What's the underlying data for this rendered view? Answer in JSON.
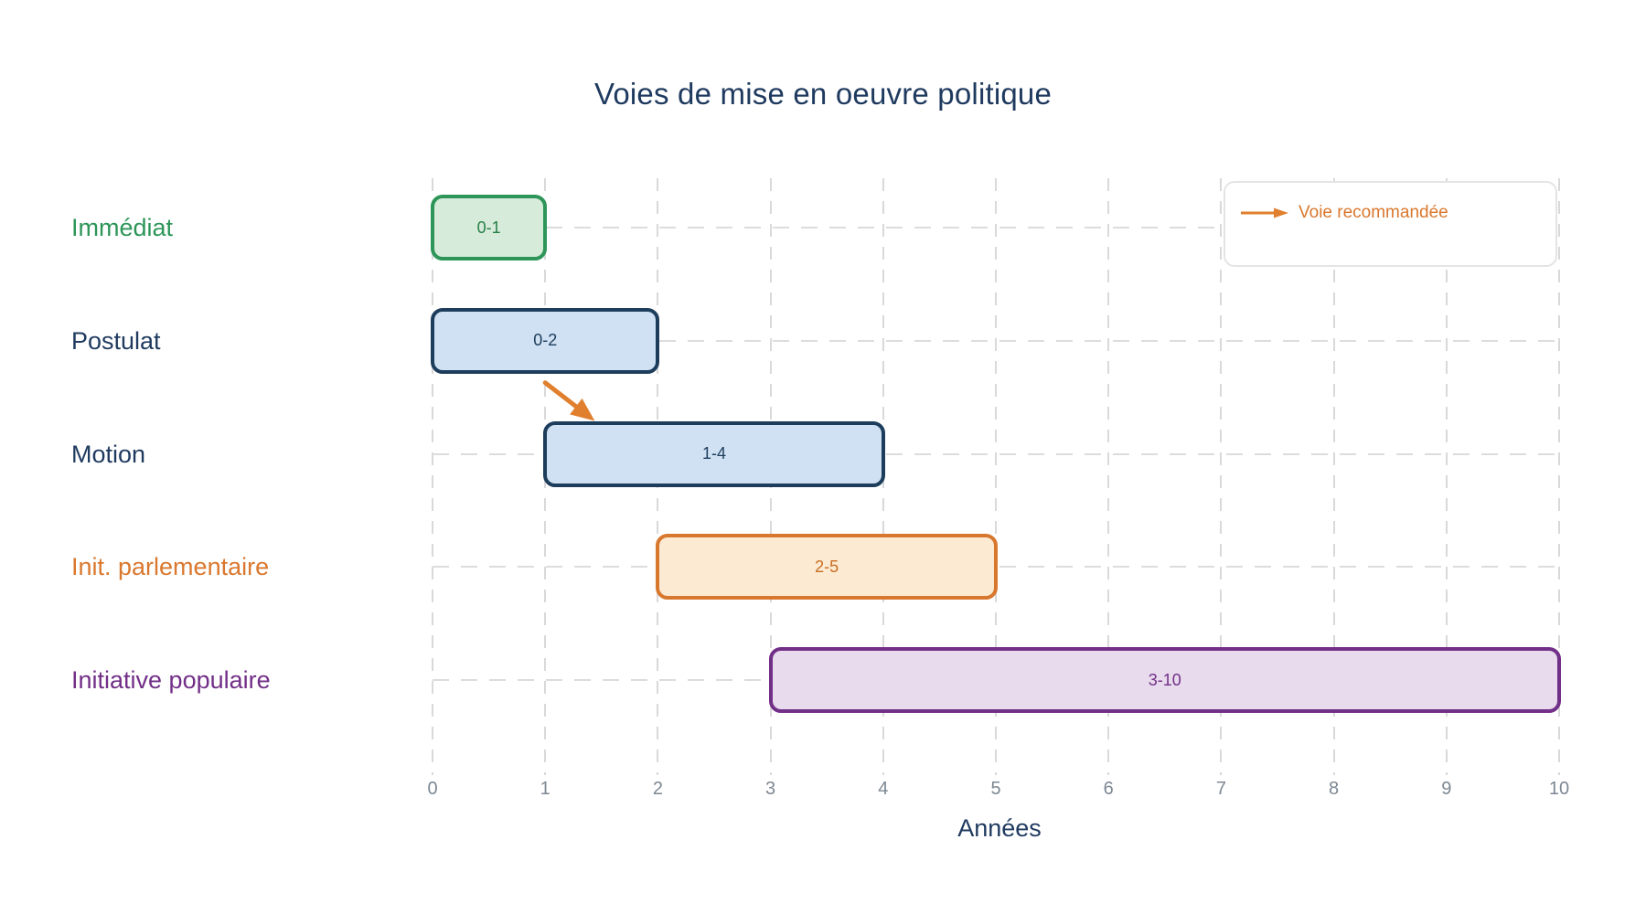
{
  "title": "Voies de mise en oeuvre politique",
  "title_color": "#1f3a5f",
  "x_axis": {
    "label": "Années",
    "label_color": "#1f3a5f",
    "tick_color": "#7d8893",
    "ticks": [
      "0",
      "1",
      "2",
      "3",
      "4",
      "5",
      "6",
      "7",
      "8",
      "9",
      "10"
    ]
  },
  "legend": {
    "arrow_label": "Voie recommandée",
    "color": "#d9772e",
    "arrow_color": "#e0802f"
  },
  "chart_data": {
    "type": "bar",
    "subtype": "gantt-range",
    "title": "Voies de mise en oeuvre politique",
    "xlabel": "Années",
    "xlim": [
      0,
      10
    ],
    "grid": "dashed",
    "rows": [
      {
        "name": "Immédiat",
        "start": 0,
        "end": 1,
        "label": "0-1",
        "fill": "#d6ebd9",
        "border": "#2d9558",
        "label_color": "#27804a",
        "name_color": "#2d9558"
      },
      {
        "name": "Postulat",
        "start": 0,
        "end": 2,
        "label": "0-2",
        "fill": "#cfe1f2",
        "border": "#1d3d5c",
        "label_color": "#1d3d5c",
        "name_color": "#1f3a5f"
      },
      {
        "name": "Motion",
        "start": 1,
        "end": 4,
        "label": "1-4",
        "fill": "#cfe1f2",
        "border": "#1d3d5c",
        "label_color": "#1d3d5c",
        "name_color": "#1f3a5f"
      },
      {
        "name": "Init. parlementaire",
        "start": 2,
        "end": 5,
        "label": "2-5",
        "fill": "#fcead3",
        "border": "#d8782e",
        "label_color": "#c96e22",
        "name_color": "#d9782e"
      },
      {
        "name": "Initiative populaire",
        "start": 3,
        "end": 10,
        "label": "3-10",
        "fill": "#e7dbed",
        "border": "#722f87",
        "label_color": "#722f87",
        "name_color": "#722f87"
      }
    ],
    "arrow": {
      "meaning": "Voie recommandée",
      "from_row": "Postulat",
      "from_x": 1.0,
      "to_row": "Motion",
      "to_x": 1.44,
      "color": "#e0802f"
    }
  }
}
